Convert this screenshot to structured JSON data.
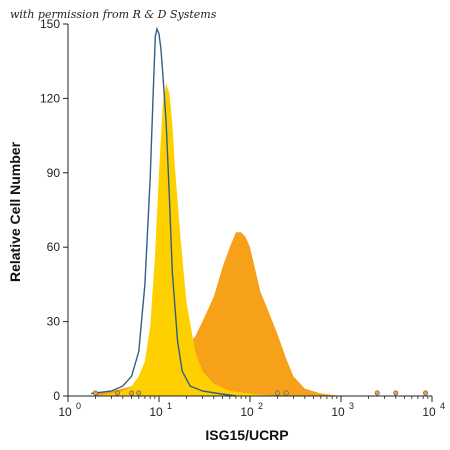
{
  "permission_text": "with permission from R & D Systems",
  "chart_data": {
    "type": "area",
    "xlabel": "ISG15/UCRP",
    "ylabel": "Relative Cell Number",
    "x_scale": "log",
    "xlim": [
      1,
      10000
    ],
    "ylim": [
      0,
      150
    ],
    "y_ticks": [
      0,
      30,
      60,
      90,
      120,
      150
    ],
    "x_ticks": [
      {
        "value": 1,
        "label": "10",
        "exp": "0"
      },
      {
        "value": 10,
        "label": "10",
        "exp": "1"
      },
      {
        "value": 100,
        "label": "10",
        "exp": "2"
      },
      {
        "value": 1000,
        "label": "10",
        "exp": "3"
      },
      {
        "value": 10000,
        "label": "10",
        "exp": "4"
      }
    ],
    "series": [
      {
        "color": "#f7a11a",
        "style": "filled",
        "points": [
          [
            2,
            1
          ],
          [
            3,
            2
          ],
          [
            4,
            3
          ],
          [
            5,
            4
          ],
          [
            6,
            6
          ],
          [
            7,
            8
          ],
          [
            8,
            10
          ],
          [
            9,
            12
          ],
          [
            10,
            14
          ],
          [
            12,
            16
          ],
          [
            15,
            18
          ],
          [
            20,
            20
          ],
          [
            25,
            24
          ],
          [
            30,
            30
          ],
          [
            40,
            40
          ],
          [
            50,
            52
          ],
          [
            60,
            60
          ],
          [
            70,
            66
          ],
          [
            80,
            66
          ],
          [
            90,
            64
          ],
          [
            100,
            60
          ],
          [
            130,
            42
          ],
          [
            160,
            34
          ],
          [
            200,
            25
          ],
          [
            250,
            15
          ],
          [
            300,
            8
          ],
          [
            400,
            3
          ],
          [
            600,
            1
          ],
          [
            1000,
            0
          ]
        ]
      },
      {
        "color": "#ffd000",
        "style": "filled",
        "points": [
          [
            2,
            0
          ],
          [
            3,
            1
          ],
          [
            4,
            2
          ],
          [
            5,
            4
          ],
          [
            6,
            8
          ],
          [
            7,
            14
          ],
          [
            8,
            28
          ],
          [
            9,
            55
          ],
          [
            10,
            90
          ],
          [
            11,
            118
          ],
          [
            12,
            126
          ],
          [
            13,
            122
          ],
          [
            14,
            110
          ],
          [
            15,
            92
          ],
          [
            17,
            66
          ],
          [
            20,
            38
          ],
          [
            25,
            18
          ],
          [
            30,
            10
          ],
          [
            40,
            5
          ],
          [
            60,
            2
          ],
          [
            100,
            1
          ],
          [
            200,
            0
          ]
        ]
      },
      {
        "color": "#2f5f86",
        "style": "line",
        "points": [
          [
            1.8,
            1
          ],
          [
            3,
            2
          ],
          [
            4,
            4
          ],
          [
            5,
            8
          ],
          [
            6,
            18
          ],
          [
            7,
            45
          ],
          [
            8,
            88
          ],
          [
            8.6,
            120
          ],
          [
            9.1,
            145
          ],
          [
            9.5,
            148
          ],
          [
            10,
            146
          ],
          [
            10.5,
            140
          ],
          [
            11,
            130
          ],
          [
            12,
            110
          ],
          [
            13,
            80
          ],
          [
            14,
            50
          ],
          [
            16,
            22
          ],
          [
            18,
            10
          ],
          [
            22,
            4
          ],
          [
            30,
            2
          ],
          [
            45,
            1
          ],
          [
            70,
            0
          ]
        ]
      }
    ],
    "markers": [
      2,
      3.5,
      5,
      6,
      200,
      250,
      2500,
      4000,
      8500
    ]
  }
}
